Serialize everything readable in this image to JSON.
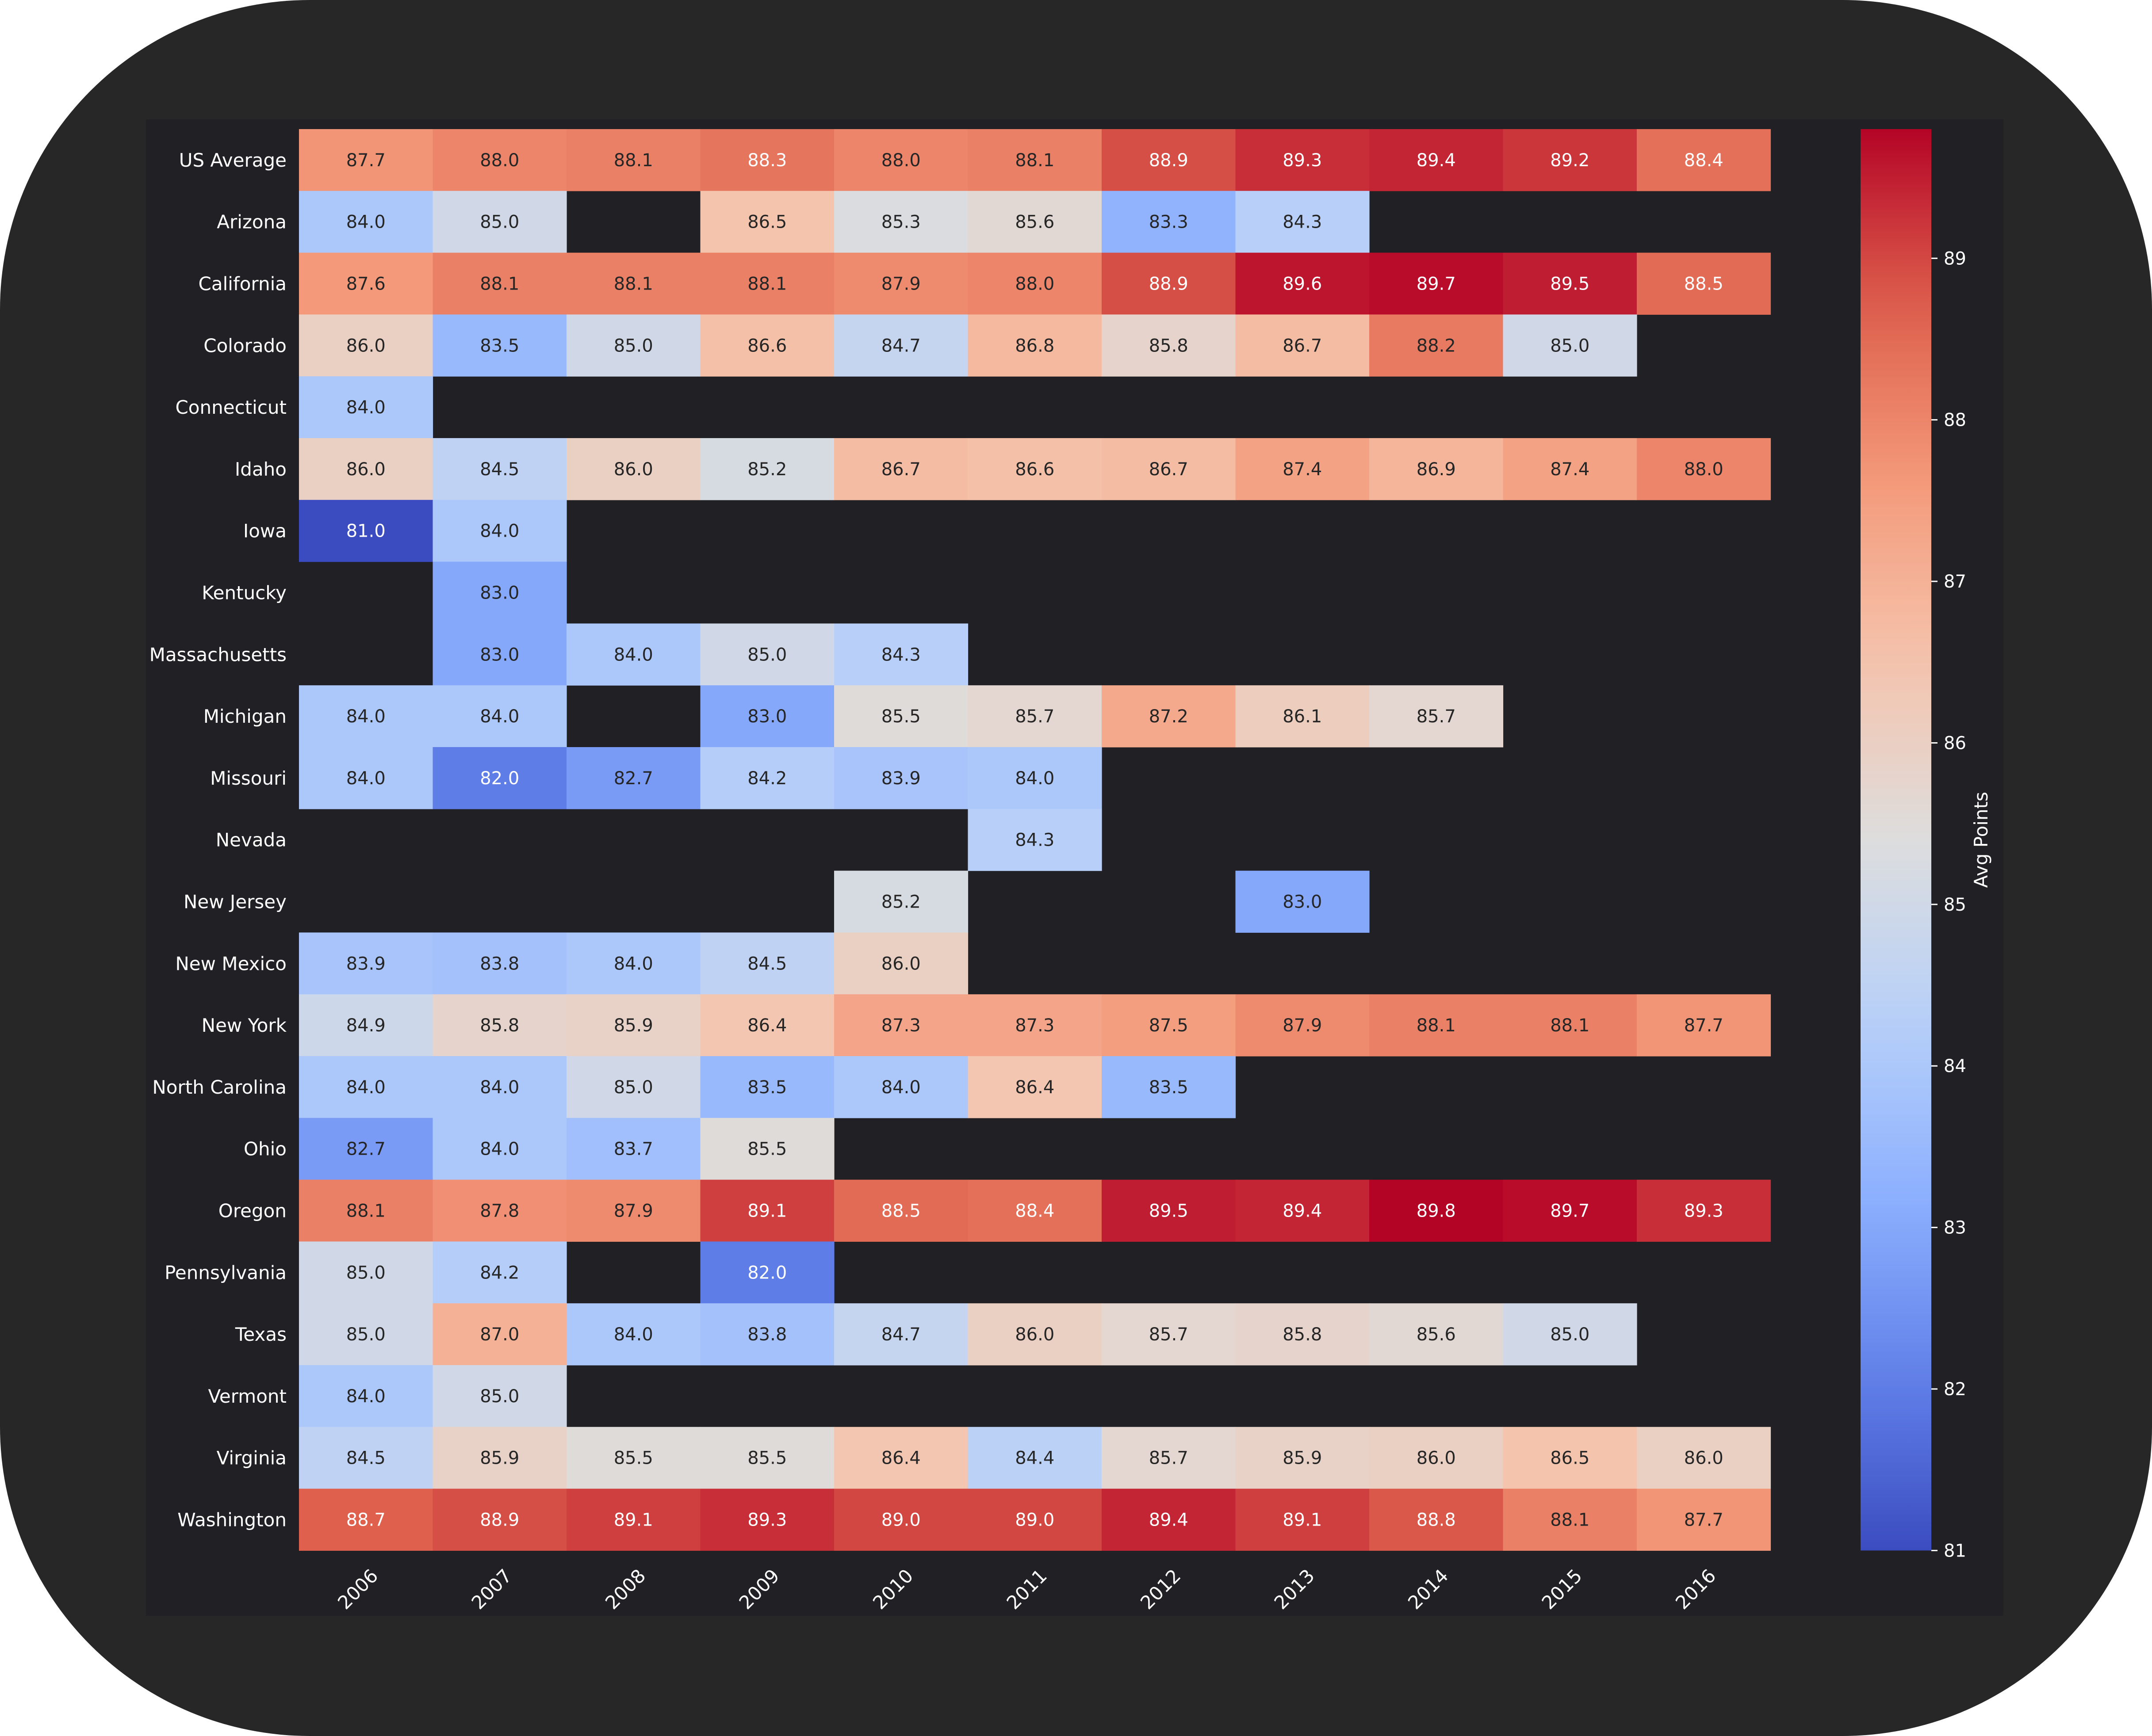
{
  "chart_data": {
    "type": "heatmap",
    "title": "",
    "xlabel": "",
    "ylabel": "",
    "colormap": "coolwarm",
    "colorbar": {
      "label": "Avg Points",
      "min": 81,
      "max": 89.8,
      "ticks": [
        81,
        82,
        83,
        84,
        85,
        86,
        87,
        88,
        89
      ]
    },
    "columns": [
      "2006",
      "2007",
      "2008",
      "2009",
      "2010",
      "2011",
      "2012",
      "2013",
      "2014",
      "2015",
      "2016"
    ],
    "rows": [
      {
        "label": "US Average",
        "values": [
          87.7,
          88.0,
          88.1,
          88.3,
          88.0,
          88.1,
          88.9,
          89.3,
          89.4,
          89.2,
          88.4
        ]
      },
      {
        "label": "Arizona",
        "values": [
          84.0,
          85.0,
          null,
          86.5,
          85.3,
          85.6,
          83.3,
          84.3,
          null,
          null,
          null
        ]
      },
      {
        "label": "California",
        "values": [
          87.6,
          88.1,
          88.1,
          88.1,
          87.9,
          88.0,
          88.9,
          89.6,
          89.7,
          89.5,
          88.5
        ]
      },
      {
        "label": "Colorado",
        "values": [
          86.0,
          83.5,
          85.0,
          86.6,
          84.7,
          86.8,
          85.8,
          86.7,
          88.2,
          85.0,
          null
        ]
      },
      {
        "label": "Connecticut",
        "values": [
          84.0,
          null,
          null,
          null,
          null,
          null,
          null,
          null,
          null,
          null,
          null
        ]
      },
      {
        "label": "Idaho",
        "values": [
          86.0,
          84.5,
          86.0,
          85.2,
          86.7,
          86.6,
          86.7,
          87.4,
          86.9,
          87.4,
          88.0
        ]
      },
      {
        "label": "Iowa",
        "values": [
          81.0,
          84.0,
          null,
          null,
          null,
          null,
          null,
          null,
          null,
          null,
          null
        ]
      },
      {
        "label": "Kentucky",
        "values": [
          null,
          83.0,
          null,
          null,
          null,
          null,
          null,
          null,
          null,
          null,
          null
        ]
      },
      {
        "label": "Massachusetts",
        "values": [
          null,
          83.0,
          84.0,
          85.0,
          84.3,
          null,
          null,
          null,
          null,
          null,
          null
        ]
      },
      {
        "label": "Michigan",
        "values": [
          84.0,
          84.0,
          null,
          83.0,
          85.5,
          85.7,
          87.2,
          86.1,
          85.7,
          null,
          null
        ]
      },
      {
        "label": "Missouri",
        "values": [
          84.0,
          82.0,
          82.7,
          84.2,
          83.9,
          84.0,
          null,
          null,
          null,
          null,
          null
        ]
      },
      {
        "label": "Nevada",
        "values": [
          null,
          null,
          null,
          null,
          null,
          84.3,
          null,
          null,
          null,
          null,
          null
        ]
      },
      {
        "label": "New Jersey",
        "values": [
          null,
          null,
          null,
          null,
          85.2,
          null,
          null,
          83.0,
          null,
          null,
          null
        ]
      },
      {
        "label": "New Mexico",
        "values": [
          83.9,
          83.8,
          84.0,
          84.5,
          86.0,
          null,
          null,
          null,
          null,
          null,
          null
        ]
      },
      {
        "label": "New York",
        "values": [
          84.9,
          85.8,
          85.9,
          86.4,
          87.3,
          87.3,
          87.5,
          87.9,
          88.1,
          88.1,
          87.7
        ]
      },
      {
        "label": "North Carolina",
        "values": [
          84.0,
          84.0,
          85.0,
          83.5,
          84.0,
          86.4,
          83.5,
          null,
          null,
          null,
          null
        ]
      },
      {
        "label": "Ohio",
        "values": [
          82.7,
          84.0,
          83.7,
          85.5,
          null,
          null,
          null,
          null,
          null,
          null,
          null
        ]
      },
      {
        "label": "Oregon",
        "values": [
          88.1,
          87.8,
          87.9,
          89.1,
          88.5,
          88.4,
          89.5,
          89.4,
          89.8,
          89.7,
          89.3
        ]
      },
      {
        "label": "Pennsylvania",
        "values": [
          85.0,
          84.2,
          null,
          82.0,
          null,
          null,
          null,
          null,
          null,
          null,
          null
        ]
      },
      {
        "label": "Texas",
        "values": [
          85.0,
          87.0,
          84.0,
          83.8,
          84.7,
          86.0,
          85.7,
          85.8,
          85.6,
          85.0,
          null
        ]
      },
      {
        "label": "Vermont",
        "values": [
          84.0,
          85.0,
          null,
          null,
          null,
          null,
          null,
          null,
          null,
          null,
          null
        ]
      },
      {
        "label": "Virginia",
        "values": [
          84.5,
          85.9,
          85.5,
          85.5,
          86.4,
          84.4,
          85.7,
          85.9,
          86.0,
          86.5,
          86.0
        ]
      },
      {
        "label": "Washington",
        "values": [
          88.7,
          88.9,
          89.1,
          89.3,
          89.0,
          89.0,
          89.4,
          89.1,
          88.8,
          88.1,
          87.7
        ]
      }
    ]
  }
}
